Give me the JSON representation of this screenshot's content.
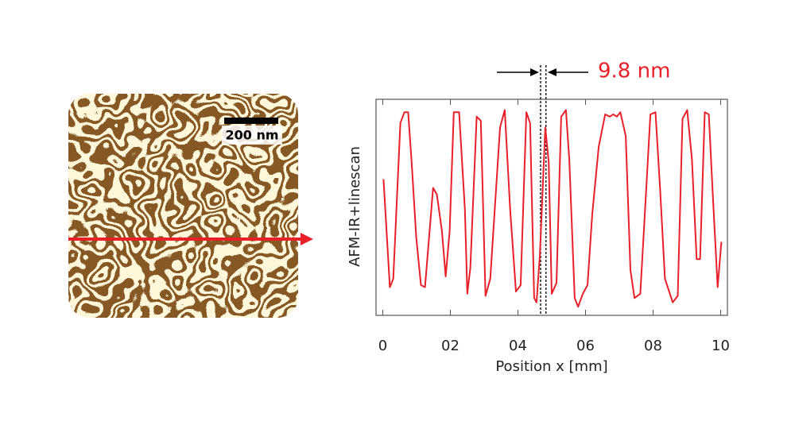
{
  "image": {
    "scale_bar_label": "200 nm"
  },
  "chart_data": {
    "type": "line",
    "annotation": "9.8 nm",
    "annotation_lines": [
      4.67,
      4.83
    ],
    "xlabel": "Position x  [mm]",
    "ylabel": "AFM-IR+linescan",
    "xlim": [
      -0.2,
      10.2
    ],
    "ylim": [
      0,
      1
    ],
    "xticks": [
      0,
      {
        "value": 2,
        "label": "02"
      },
      {
        "value": 4,
        "label": "04"
      },
      {
        "value": 6,
        "label": "06"
      },
      {
        "value": 8,
        "label": "08"
      },
      10
    ],
    "color": "#e8202a",
    "x": [
      0.02,
      0.21,
      0.31,
      0.52,
      0.64,
      0.75,
      0.85,
      0.99,
      1.13,
      1.25,
      1.49,
      1.6,
      1.75,
      1.86,
      1.98,
      2.1,
      2.26,
      2.43,
      2.5,
      2.59,
      2.78,
      2.9,
      3.04,
      3.18,
      3.47,
      3.61,
      3.77,
      3.94,
      4.08,
      4.25,
      4.36,
      4.48,
      4.55,
      4.65,
      4.81,
      4.91,
      5.0,
      5.14,
      5.28,
      5.42,
      5.52,
      5.68,
      5.78,
      5.92,
      6.06,
      6.2,
      6.39,
      6.58,
      6.72,
      6.82,
      6.93,
      7.03,
      7.19,
      7.33,
      7.45,
      7.62,
      7.78,
      7.92,
      8.07,
      8.21,
      8.35,
      8.58,
      8.73,
      8.87,
      9.01,
      9.15,
      9.29,
      9.39,
      9.53,
      9.65,
      9.76,
      9.91,
      10.02
    ],
    "values": [
      0.63,
      0.13,
      0.17,
      0.89,
      0.94,
      0.94,
      0.72,
      0.36,
      0.14,
      0.13,
      0.59,
      0.56,
      0.39,
      0.18,
      0.39,
      0.94,
      0.94,
      0.49,
      0.1,
      0.22,
      0.92,
      0.9,
      0.09,
      0.17,
      0.87,
      0.95,
      0.49,
      0.11,
      0.14,
      0.94,
      0.89,
      0.08,
      0.06,
      0.28,
      0.87,
      0.71,
      0.1,
      0.15,
      0.92,
      0.95,
      0.72,
      0.08,
      0.04,
      0.1,
      0.14,
      0.47,
      0.78,
      0.93,
      0.92,
      0.93,
      0.92,
      0.94,
      0.83,
      0.21,
      0.08,
      0.1,
      0.54,
      0.93,
      0.94,
      0.58,
      0.17,
      0.06,
      0.09,
      0.91,
      0.95,
      0.72,
      0.26,
      0.26,
      0.94,
      0.93,
      0.58,
      0.13,
      0.34
    ]
  }
}
